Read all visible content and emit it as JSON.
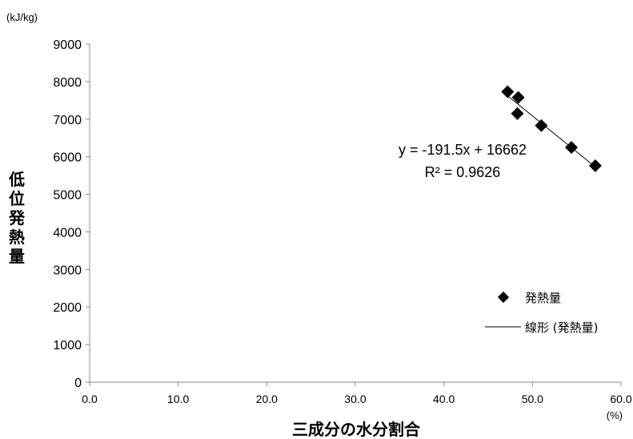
{
  "chart_data": {
    "type": "scatter",
    "xlabel": "三成分の水分割合",
    "ylabel": "低位発熱量",
    "x_unit": "(%)",
    "y_unit": "(kJ/kg)",
    "xlim": [
      0,
      60
    ],
    "ylim": [
      0,
      9000
    ],
    "xticks": [
      "0.0",
      "10.0",
      "20.0",
      "30.0",
      "40.0",
      "50.0",
      "60.0"
    ],
    "yticks": [
      "0",
      "1000",
      "2000",
      "3000",
      "4000",
      "5000",
      "6000",
      "7000",
      "8000",
      "9000"
    ],
    "series": [
      {
        "name": "発熱量",
        "marker": "diamond",
        "color": "#000000",
        "points": [
          {
            "x": 47.2,
            "y": 7730
          },
          {
            "x": 48.4,
            "y": 7580
          },
          {
            "x": 48.3,
            "y": 7150
          },
          {
            "x": 51.0,
            "y": 6830
          },
          {
            "x": 54.4,
            "y": 6250
          },
          {
            "x": 57.1,
            "y": 5760
          }
        ]
      }
    ],
    "trendline": {
      "name": "線形 (発熱量)",
      "slope": -191.5,
      "intercept": 16662,
      "x_range": [
        47.0,
        57.3
      ],
      "equation": "y = -191.5x + 16662",
      "r2": "R² = 0.9626"
    },
    "grid": false,
    "legend": "right"
  }
}
